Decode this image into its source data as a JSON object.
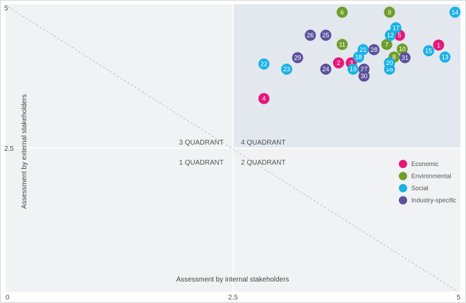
{
  "chart_data": {
    "type": "scatter",
    "title": "",
    "xlabel": "Assessment by internal stakeholders",
    "ylabel": "Assessment by external stakeholders",
    "xlim": [
      0,
      5
    ],
    "ylim": [
      0,
      5
    ],
    "x_ticks": [
      "0",
      "2.5",
      "5"
    ],
    "y_ticks": [
      "2.5",
      "5"
    ],
    "grid": false,
    "quadrant_labels": [
      "3 QUADRANT",
      "4 QUADRANT",
      "1 QUADRANT",
      "2 QUADRANT"
    ],
    "legend_position": "right-center",
    "series": [
      {
        "name": "Economic",
        "color": "#e6177a",
        "points": [
          {
            "label": "1",
            "x": 4.76,
            "y": 4.29
          },
          {
            "label": "2",
            "x": 3.66,
            "y": 3.98
          },
          {
            "label": "3",
            "x": 3.8,
            "y": 3.98
          },
          {
            "label": "4",
            "x": 2.84,
            "y": 3.36
          },
          {
            "label": "5",
            "x": 4.33,
            "y": 4.46
          }
        ]
      },
      {
        "name": "Environmental",
        "color": "#6e9e2a",
        "points": [
          {
            "label": "6",
            "x": 3.7,
            "y": 4.86
          },
          {
            "label": "7",
            "x": 4.19,
            "y": 4.3
          },
          {
            "label": "8",
            "x": 4.27,
            "y": 4.08
          },
          {
            "label": "9",
            "x": 4.22,
            "y": 4.86
          },
          {
            "label": "10",
            "x": 4.36,
            "y": 4.22
          },
          {
            "label": "11",
            "x": 3.7,
            "y": 4.3
          }
        ]
      },
      {
        "name": "Social",
        "color": "#19b1e6",
        "points": [
          {
            "label": "12",
            "x": 4.23,
            "y": 4.46
          },
          {
            "label": "13",
            "x": 4.83,
            "y": 4.08
          },
          {
            "label": "14",
            "x": 4.94,
            "y": 4.86
          },
          {
            "label": "15",
            "x": 4.65,
            "y": 4.19
          },
          {
            "label": "16",
            "x": 4.22,
            "y": 3.87
          },
          {
            "label": "17",
            "x": 4.29,
            "y": 4.59
          },
          {
            "label": "18",
            "x": 3.88,
            "y": 4.08
          },
          {
            "label": "19",
            "x": 3.82,
            "y": 3.87
          },
          {
            "label": "20",
            "x": 4.22,
            "y": 3.98
          },
          {
            "label": "21",
            "x": 3.93,
            "y": 4.21
          },
          {
            "label": "22",
            "x": 2.84,
            "y": 3.96
          },
          {
            "label": "23",
            "x": 3.09,
            "y": 3.87
          }
        ]
      },
      {
        "name": "Industry-specific",
        "color": "#5b509b",
        "points": [
          {
            "label": "24",
            "x": 3.52,
            "y": 3.87
          },
          {
            "label": "25",
            "x": 3.52,
            "y": 4.46
          },
          {
            "label": "26",
            "x": 3.35,
            "y": 4.46
          },
          {
            "label": "27",
            "x": 3.94,
            "y": 3.87
          },
          {
            "label": "28",
            "x": 4.05,
            "y": 4.21
          },
          {
            "label": "29",
            "x": 3.21,
            "y": 4.07
          },
          {
            "label": "30",
            "x": 3.94,
            "y": 3.75
          },
          {
            "label": "31",
            "x": 4.39,
            "y": 4.07
          }
        ]
      }
    ]
  }
}
